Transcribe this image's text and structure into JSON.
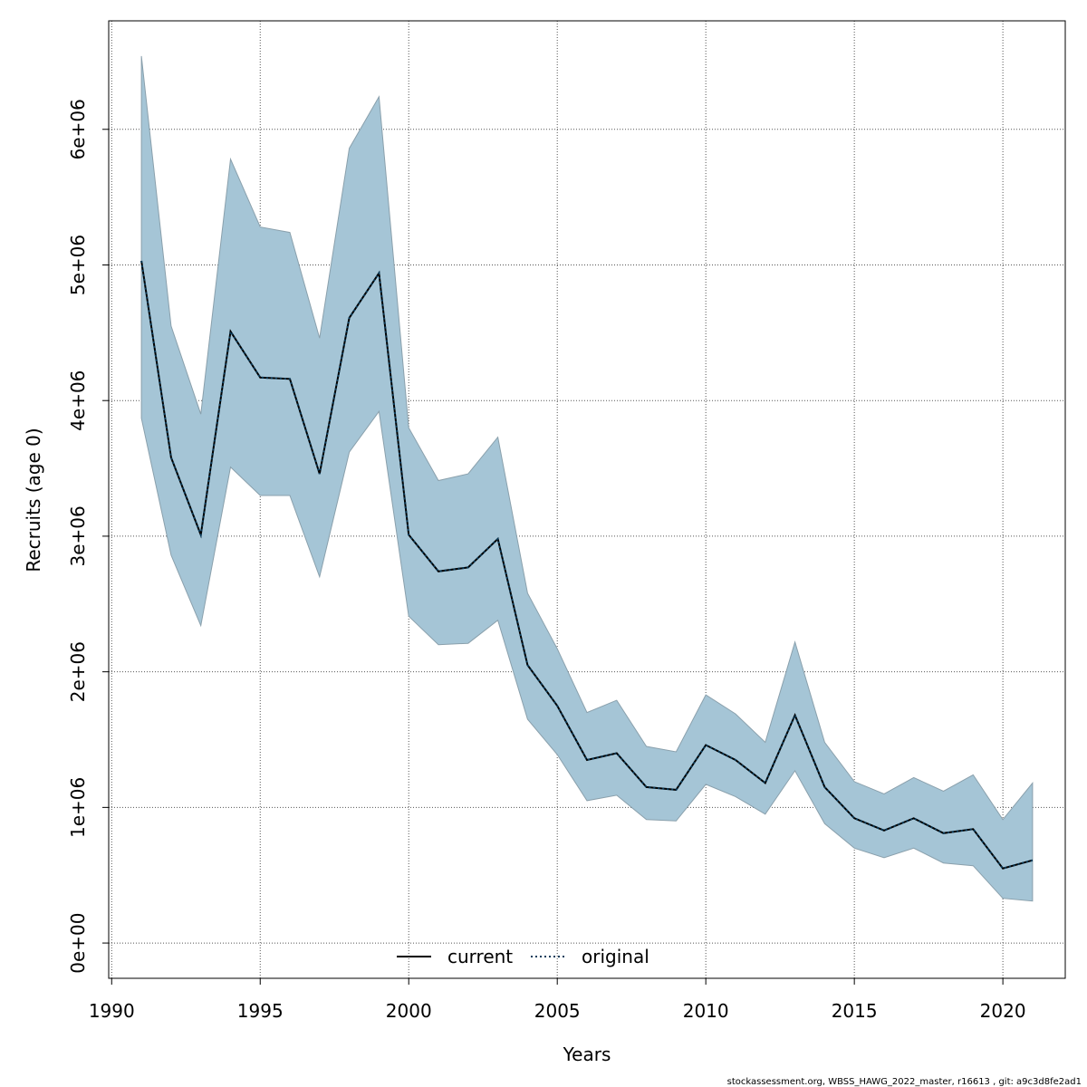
{
  "chart_data": {
    "type": "line",
    "xlabel": "Years",
    "ylabel": "Recruits (age 0)",
    "xlim": [
      1989.9,
      2022.1
    ],
    "ylim": [
      -260000,
      6800000
    ],
    "x_ticks": [
      1990,
      1995,
      2000,
      2005,
      2010,
      2015,
      2020
    ],
    "x_tick_labels": [
      "1990",
      "1995",
      "2000",
      "2005",
      "2010",
      "2015",
      "2020"
    ],
    "y_ticks": [
      0,
      1000000,
      2000000,
      3000000,
      4000000,
      5000000,
      6000000
    ],
    "y_tick_labels": [
      "0e+00",
      "1e+06",
      "2e+06",
      "3e+06",
      "4e+06",
      "5e+06",
      "6e+06"
    ],
    "grid": true,
    "x": [
      1991,
      1992,
      1993,
      1994,
      1995,
      1996,
      1997,
      1998,
      1999,
      2000,
      2001,
      2002,
      2003,
      2004,
      2005,
      2006,
      2007,
      2008,
      2009,
      2010,
      2011,
      2012,
      2013,
      2014,
      2015,
      2016,
      2017,
      2018,
      2019,
      2020,
      2021
    ],
    "band": {
      "color": "#a5c5d6",
      "upper": [
        6540000,
        4550000,
        3900000,
        5780000,
        5280000,
        5240000,
        4460000,
        5860000,
        6240000,
        3800000,
        3410000,
        3460000,
        3730000,
        2580000,
        2170000,
        1700000,
        1790000,
        1450000,
        1410000,
        1830000,
        1690000,
        1480000,
        2220000,
        1480000,
        1190000,
        1100000,
        1220000,
        1120000,
        1240000,
        910000,
        1180000
      ],
      "lower": [
        3870000,
        2860000,
        2340000,
        3510000,
        3300000,
        3300000,
        2700000,
        3620000,
        3920000,
        2410000,
        2200000,
        2210000,
        2380000,
        1650000,
        1390000,
        1050000,
        1090000,
        910000,
        900000,
        1170000,
        1080000,
        950000,
        1270000,
        880000,
        700000,
        630000,
        700000,
        590000,
        570000,
        330000,
        310000
      ]
    },
    "series": [
      {
        "name": "current",
        "style": "solid",
        "color": "#000000",
        "values": [
          5030000,
          3580000,
          3010000,
          4510000,
          4170000,
          4160000,
          3460000,
          4610000,
          4940000,
          3010000,
          2740000,
          2770000,
          2980000,
          2050000,
          1750000,
          1350000,
          1400000,
          1150000,
          1130000,
          1460000,
          1350000,
          1180000,
          1680000,
          1150000,
          920000,
          830000,
          920000,
          810000,
          840000,
          550000,
          610000
        ]
      },
      {
        "name": "original",
        "style": "dotted",
        "color": "#0b3d5c",
        "values": [
          5030000,
          3580000,
          3010000,
          4510000,
          4170000,
          4160000,
          3460000,
          4610000,
          4940000,
          3010000,
          2740000,
          2770000,
          2980000,
          2050000,
          1750000,
          1350000,
          1400000,
          1150000,
          1130000,
          1460000,
          1350000,
          1180000,
          1680000,
          1150000,
          920000,
          830000,
          920000,
          810000,
          840000,
          550000,
          610000
        ]
      }
    ],
    "legend": {
      "placement": "bottom-center",
      "entries": [
        "current",
        "original"
      ]
    },
    "footer": "stockassessment.org, WBSS_HAWG_2022_master, r16613 , git: a9c3d8fe2ad1"
  }
}
